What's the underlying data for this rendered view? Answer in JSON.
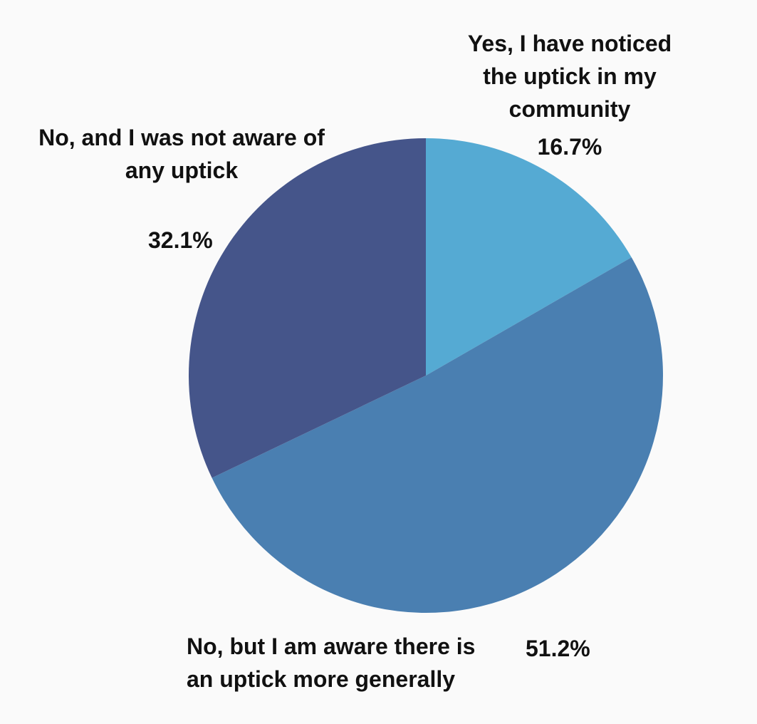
{
  "chart_data": {
    "type": "pie",
    "start_angle_deg": 0,
    "direction": "clockwise",
    "slices": [
      {
        "label_lines": [
          "Yes, I have noticed",
          "the uptick in my",
          "community"
        ],
        "value": 16.7,
        "value_label": "16.7%",
        "color": "#55aad3"
      },
      {
        "label_lines": [
          "No, but I am aware there is",
          "an uptick more generally"
        ],
        "value": 51.2,
        "value_label": "51.2%",
        "color": "#4a7fb1"
      },
      {
        "label_lines": [
          "No, and I was not aware of",
          "any uptick"
        ],
        "value": 32.1,
        "value_label": "32.1%",
        "color": "#45558a"
      }
    ]
  }
}
